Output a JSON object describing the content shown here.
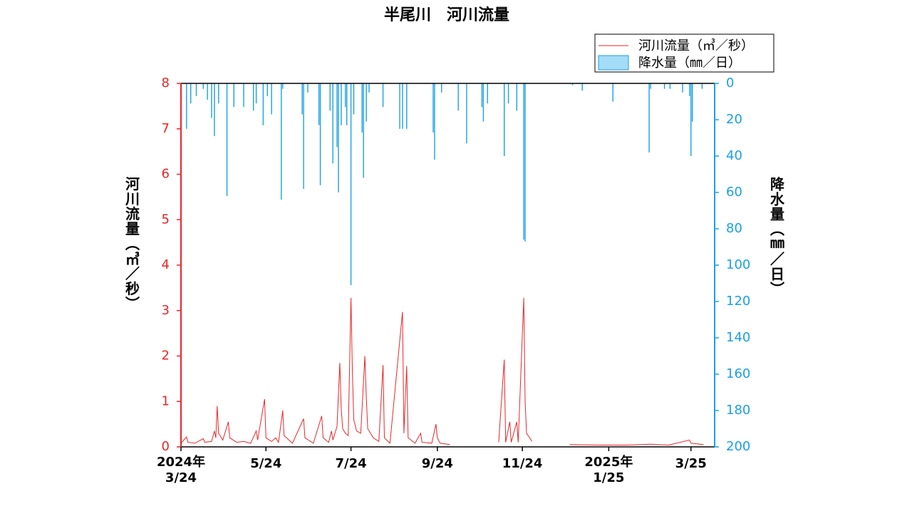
{
  "chart_data": {
    "type": "line",
    "title": "半尾川　河川流量",
    "y_label": "河川流量（㎥／秒）",
    "y2_label": "降水量（㎜／日）",
    "xlim": [
      0,
      383
    ],
    "xticks": [
      {
        "value": 0,
        "label": "2024年\n3/24"
      },
      {
        "value": 61,
        "label": "5/24"
      },
      {
        "value": 122,
        "label": "7/24"
      },
      {
        "value": 184,
        "label": "9/24"
      },
      {
        "value": 245,
        "label": "11/24"
      },
      {
        "value": 307,
        "label": "2025年\n1/25"
      },
      {
        "value": 366,
        "label": "3/25"
      }
    ],
    "ylim": [
      0,
      8
    ],
    "yticks": [
      0,
      1,
      2,
      3,
      4,
      5,
      6,
      7,
      8
    ],
    "y2lim": [
      200,
      0
    ],
    "y2ticks": [
      0,
      20,
      40,
      60,
      80,
      100,
      120,
      140,
      160,
      180,
      200
    ],
    "legend": "top-right",
    "series": [
      {
        "name": "河川流量（㎥／秒）",
        "type": "line",
        "color": "#e8262a",
        "x": [
          0,
          4,
          5,
          10,
          16,
          17,
          22,
          24,
          25,
          26,
          27,
          30,
          34,
          35,
          40,
          45,
          50,
          54,
          55,
          60,
          61,
          65,
          68,
          70,
          73,
          74,
          80,
          88,
          89,
          95,
          101,
          102,
          106,
          108,
          109,
          112,
          114,
          115,
          116,
          118,
          120,
          122,
          123,
          124,
          126,
          129,
          132,
          133,
          134,
          138,
          142,
          145,
          146,
          150,
          159,
          160,
          162,
          163,
          168,
          172,
          173,
          180,
          183,
          184,
          186,
          193,
          210,
          228,
          232,
          233,
          236,
          237,
          241,
          242,
          246,
          247,
          248,
          252,
          265,
          279,
          300,
          320,
          337,
          350,
          365,
          366,
          375
        ],
        "values": [
          0.08,
          0.22,
          0.1,
          0.08,
          0.18,
          0.1,
          0.12,
          0.35,
          0.2,
          0.9,
          0.3,
          0.15,
          0.55,
          0.2,
          0.1,
          0.12,
          0.08,
          0.35,
          0.15,
          1.05,
          0.2,
          0.12,
          0.2,
          0.1,
          0.8,
          0.25,
          0.08,
          0.62,
          0.2,
          0.08,
          0.68,
          0.2,
          0.1,
          0.35,
          0.15,
          0.45,
          1.85,
          0.85,
          0.4,
          0.3,
          0.25,
          3.28,
          1.7,
          0.6,
          0.35,
          0.3,
          2.0,
          1.1,
          0.4,
          0.2,
          0.12,
          1.8,
          0.2,
          0.08,
          2.97,
          0.3,
          1.78,
          0.2,
          0.08,
          0.3,
          0.1,
          0.08,
          0.5,
          0.2,
          0.08,
          0.05,
          null,
          0.1,
          1.92,
          0.1,
          0.55,
          0.1,
          0.55,
          0.1,
          3.28,
          1.0,
          0.3,
          0.12,
          null,
          0.05,
          0.04,
          0.04,
          0.06,
          0.04,
          0.15,
          0.08,
          0.05
        ]
      },
      {
        "name": "降水量（㎜／日）",
        "type": "bar",
        "axis": "y2",
        "color": "#1aa0e6",
        "x": [
          4,
          7,
          11,
          16,
          19,
          22,
          24,
          27,
          33,
          38,
          45,
          52,
          54,
          59,
          62,
          65,
          72,
          73,
          87,
          88,
          91,
          99,
          100,
          107,
          109,
          112,
          113,
          115,
          118,
          119,
          122,
          124,
          130,
          131,
          133,
          135,
          145,
          157,
          159,
          162,
          181,
          182,
          187,
          199,
          205,
          216,
          217,
          220,
          232,
          235,
          241,
          246,
          247,
          281,
          288,
          310,
          336,
          337,
          347,
          351,
          360,
          365,
          366,
          367,
          374
        ],
        "values": [
          25,
          11,
          7,
          3,
          9,
          19,
          29,
          11,
          62,
          13,
          13,
          15,
          11,
          23,
          7,
          17,
          64,
          3,
          17,
          58,
          5,
          23,
          56,
          15,
          44,
          35,
          60,
          23,
          13,
          23,
          111,
          17,
          27,
          52,
          21,
          5,
          13,
          25,
          25,
          25,
          27,
          42,
          5,
          15,
          33,
          13,
          21,
          11,
          40,
          11,
          15,
          86,
          87,
          1,
          4,
          10,
          38,
          3,
          3,
          3,
          5,
          7,
          40,
          21,
          3
        ]
      }
    ]
  }
}
